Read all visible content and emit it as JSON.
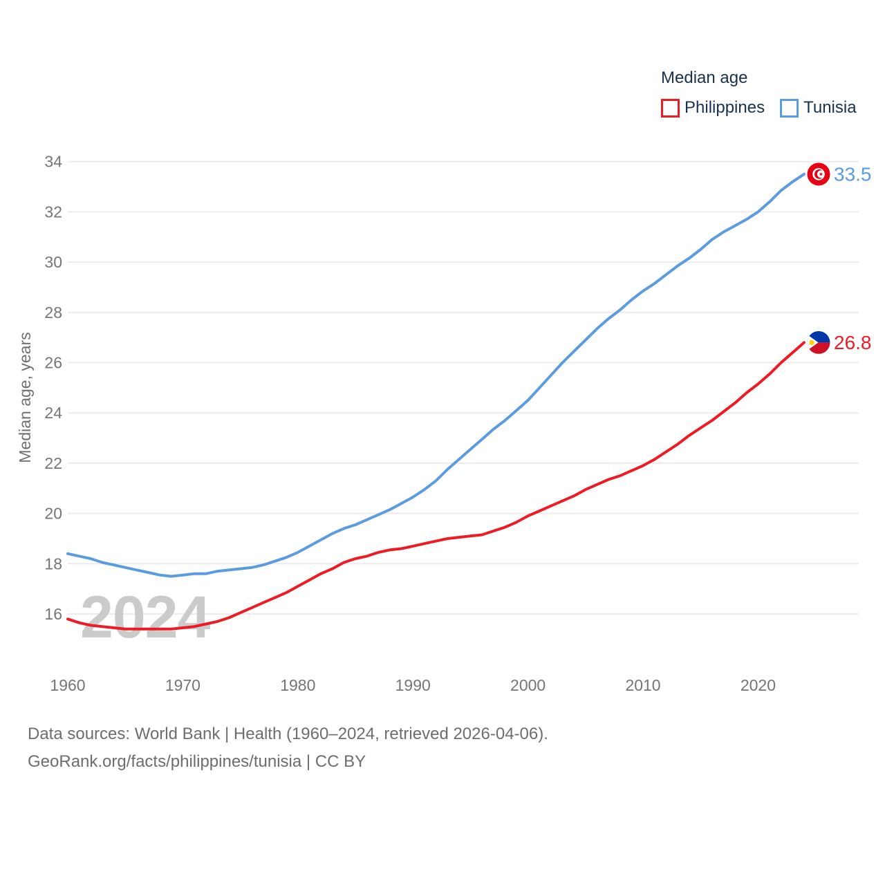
{
  "legend": {
    "title": "Median age",
    "items": [
      {
        "label": "Philippines",
        "color": "#ed1c24"
      },
      {
        "label": "Tunisia",
        "color": "#5b9bdf"
      }
    ]
  },
  "watermark": "2024",
  "y_axis": {
    "title": "Median age, years",
    "ticks": [
      16,
      18,
      20,
      22,
      24,
      26,
      28,
      30,
      32,
      34
    ]
  },
  "x_axis": {
    "ticks": [
      1960,
      1970,
      1980,
      1990,
      2000,
      2010,
      2020
    ]
  },
  "end_labels": [
    {
      "series": "Philippines",
      "value": "26.8",
      "flag_id": "flag-philippines"
    },
    {
      "series": "Tunisia",
      "value": "33.5",
      "flag_id": "flag-tunisia"
    }
  ],
  "caption": {
    "line1": "Data sources: World Bank | Health (1960–2024, retrieved 2026-04-06).",
    "line2": "GeoRank.org/facts/philippines/tunisia | CC BY"
  },
  "chart_data": {
    "type": "line",
    "title": "Median age",
    "ylabel": "Median age, years",
    "grid": "horizontal",
    "legend_position": "top-right",
    "x_range": [
      1960,
      2024
    ],
    "ylim": [
      14.8,
      34.7
    ],
    "x": [
      1960,
      1961,
      1962,
      1963,
      1964,
      1965,
      1966,
      1967,
      1968,
      1969,
      1970,
      1971,
      1972,
      1973,
      1974,
      1975,
      1976,
      1977,
      1978,
      1979,
      1980,
      1981,
      1982,
      1983,
      1984,
      1985,
      1986,
      1987,
      1988,
      1989,
      1990,
      1991,
      1992,
      1993,
      1994,
      1995,
      1996,
      1997,
      1998,
      1999,
      2000,
      2001,
      2002,
      2003,
      2004,
      2005,
      2006,
      2007,
      2008,
      2009,
      2010,
      2011,
      2012,
      2013,
      2014,
      2015,
      2016,
      2017,
      2018,
      2019,
      2020,
      2021,
      2022,
      2023,
      2024
    ],
    "series": [
      {
        "name": "Philippines",
        "color": "#ed1c24",
        "values": [
          15.8,
          15.65,
          15.55,
          15.5,
          15.45,
          15.4,
          15.4,
          15.4,
          15.4,
          15.4,
          15.45,
          15.5,
          15.6,
          15.7,
          15.85,
          16.05,
          16.25,
          16.45,
          16.65,
          16.85,
          17.1,
          17.35,
          17.6,
          17.8,
          18.05,
          18.2,
          18.3,
          18.45,
          18.55,
          18.6,
          18.7,
          18.8,
          18.9,
          19.0,
          19.05,
          19.1,
          19.15,
          19.3,
          19.45,
          19.65,
          19.9,
          20.1,
          20.3,
          20.5,
          20.7,
          20.95,
          21.15,
          21.35,
          21.5,
          21.7,
          21.9,
          22.15,
          22.45,
          22.75,
          23.1,
          23.4,
          23.7,
          24.05,
          24.4,
          24.8,
          25.15,
          25.55,
          26.0,
          26.4,
          26.8
        ]
      },
      {
        "name": "Tunisia",
        "color": "#5b9bdf",
        "values": [
          18.4,
          18.3,
          18.2,
          18.05,
          17.95,
          17.85,
          17.75,
          17.65,
          17.55,
          17.5,
          17.55,
          17.6,
          17.6,
          17.7,
          17.75,
          17.8,
          17.85,
          17.95,
          18.1,
          18.25,
          18.45,
          18.7,
          18.95,
          19.2,
          19.4,
          19.55,
          19.75,
          19.95,
          20.15,
          20.4,
          20.65,
          20.95,
          21.3,
          21.75,
          22.15,
          22.55,
          22.95,
          23.35,
          23.7,
          24.1,
          24.5,
          25.0,
          25.5,
          26.0,
          26.45,
          26.9,
          27.35,
          27.75,
          28.1,
          28.5,
          28.85,
          29.15,
          29.5,
          29.85,
          30.15,
          30.5,
          30.9,
          31.2,
          31.45,
          31.7,
          32.0,
          32.4,
          32.85,
          33.2,
          33.5
        ]
      }
    ]
  }
}
